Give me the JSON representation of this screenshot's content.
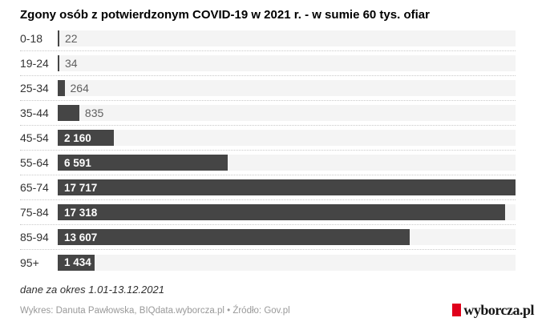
{
  "title": "Zgony osób z potwierdzonym COVID-19 w 2021 r. - w sumie 60 tys. ofiar",
  "chart_data": {
    "type": "bar",
    "orientation": "horizontal",
    "title": "Zgony osób z potwierdzonym COVID-19 w 2021 r. - w sumie 60 tys. ofiar",
    "categories": [
      "0-18",
      "19-24",
      "25-34",
      "35-44",
      "45-54",
      "55-64",
      "65-74",
      "75-84",
      "85-94",
      "95+"
    ],
    "values": [
      22,
      34,
      264,
      835,
      2160,
      6591,
      17717,
      17318,
      13607,
      1434
    ],
    "value_labels": [
      "22",
      "34",
      "264",
      "835",
      "2 160",
      "6 591",
      "17 717",
      "17 318",
      "13 607",
      "1 434"
    ],
    "xlim": [
      0,
      17717
    ],
    "grid": false,
    "legend": false,
    "bar_color": "#454545",
    "track_color": "#f4f4f4"
  },
  "footnote": "dane za okres 1.01-13.12.2021",
  "credits": "Wykres: Danuta Pawłowska, BIQdata.wyborcza.pl • Źródło: Gov.pl",
  "logo": {
    "text": "wyborcza.pl",
    "red": "#e0001b"
  }
}
